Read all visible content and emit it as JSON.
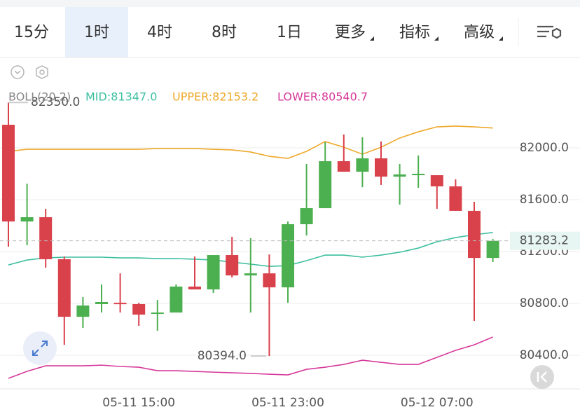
{
  "toolbar": {
    "tabs": [
      "15分",
      "1时",
      "4时",
      "8时",
      "1日",
      "更多",
      "指标",
      "高级"
    ],
    "active": 1
  },
  "chart_data": {
    "type": "candlestick",
    "indicator": "BOLL(20,2)",
    "categories": [
      null,
      null,
      null,
      null,
      null,
      null,
      null,
      "05-11 15:00",
      null,
      null,
      null,
      null,
      null,
      null,
      null,
      "05-11 23:00",
      null,
      null,
      null,
      null,
      null,
      null,
      null,
      "05-12 07:00",
      null,
      null,
      null
    ],
    "open": [
      82178,
      81432,
      81465,
      81141,
      80697,
      80795,
      80805,
      80795,
      80719,
      80730,
      80930,
      80908,
      81173,
      81016,
      81032,
      80924,
      81411,
      81535,
      81897,
      81816,
      81919,
      81778,
      81789,
      81789,
      81703,
      81514,
      81151
    ],
    "high": [
      82350,
      81724,
      81530,
      81162,
      80849,
      80946,
      81032,
      80805,
      80827,
      80946,
      81162,
      81173,
      81314,
      81303,
      81178,
      81432,
      81876,
      82043,
      82103,
      82081,
      82049,
      81876,
      81941,
      81789,
      81757,
      81584,
      81297
    ],
    "low": [
      81238,
      81249,
      81076,
      80481,
      80611,
      80730,
      80730,
      80627,
      80589,
      80730,
      80908,
      80881,
      81000,
      80730,
      80394,
      80805,
      81324,
      81535,
      81816,
      81697,
      81714,
      81562,
      81692,
      81530,
      81514,
      80665,
      81119
    ],
    "close": [
      81432,
      81465,
      81141,
      80697,
      80784,
      80811,
      80795,
      80714,
      80730,
      80930,
      80908,
      81173,
      81016,
      81032,
      80924,
      81411,
      81535,
      81897,
      81816,
      81919,
      81778,
      81795,
      81800,
      81703,
      81514,
      81151,
      81283.2
    ],
    "up_color": "#4caf50",
    "down_color": "#d9414b",
    "series": [
      {
        "name": "MID:81347.0",
        "color": "#3dbfa0",
        "values": [
          81097,
          81135,
          81151,
          81157,
          81157,
          81157,
          81151,
          81151,
          81146,
          81146,
          81141,
          81135,
          81119,
          81103,
          81086,
          81092,
          81130,
          81173,
          81173,
          81157,
          81173,
          81195,
          81227,
          81276,
          81308,
          81330,
          81347.0
        ]
      },
      {
        "name": "UPPER:82153.2",
        "color": "#eea82a",
        "values": [
          81973,
          81989,
          81989,
          81989,
          81989,
          81989,
          81989,
          81989,
          81995,
          81995,
          81995,
          81989,
          81984,
          81968,
          81935,
          81919,
          81973,
          82049,
          82005,
          81951,
          82005,
          82076,
          82124,
          82162,
          82168,
          82162,
          82153.2
        ]
      },
      {
        "name": "LOWER:80540.7",
        "color": "#d6399a",
        "values": [
          80222,
          80276,
          80319,
          80319,
          80319,
          80324,
          80314,
          80308,
          80281,
          80281,
          80276,
          80270,
          80265,
          80260,
          80254,
          80249,
          80292,
          80308,
          80330,
          80362,
          80346,
          80330,
          80330,
          80384,
          80438,
          80481,
          80540.7
        ]
      }
    ],
    "ylim": [
      80141,
      82681
    ],
    "yticks": [
      {
        "value": 80400,
        "label": "80400.0"
      },
      {
        "value": 80800,
        "label": "80800.0"
      },
      {
        "value": 81200,
        "label": "81200.0"
      },
      {
        "value": 81600,
        "label": "81600.0"
      },
      {
        "value": 82000,
        "label": "82000.0"
      }
    ],
    "grid": true,
    "high_marker": {
      "value": 82350,
      "label": "82350.0"
    },
    "low_marker": {
      "value": 80394,
      "label": "80394.0"
    },
    "last_price": {
      "value": 81283.2,
      "label": "81283.2"
    }
  }
}
